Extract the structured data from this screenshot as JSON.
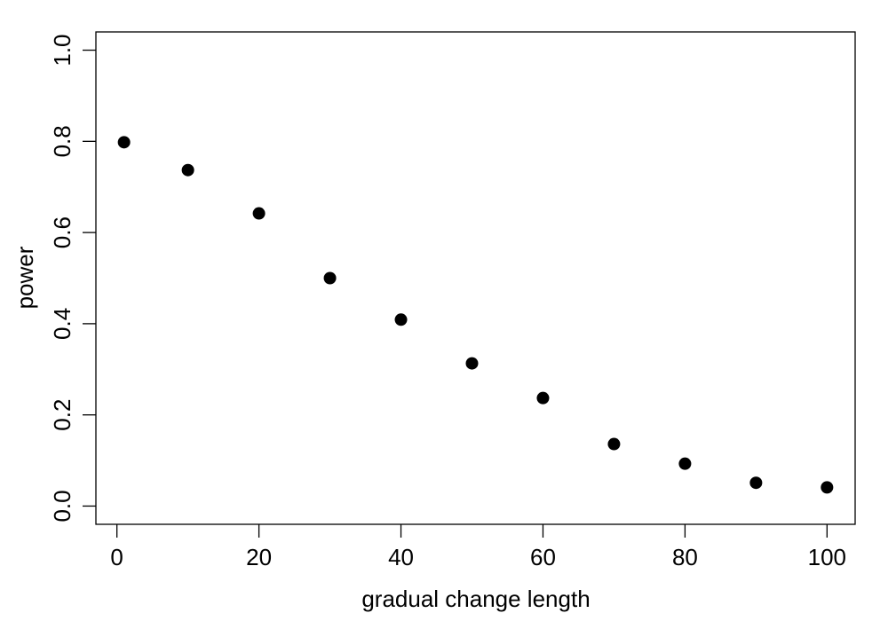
{
  "chart_data": {
    "type": "scatter",
    "x_label": "gradual change length",
    "y_label": "power",
    "x": [
      1,
      10,
      20,
      30,
      40,
      50,
      60,
      70,
      80,
      90,
      100
    ],
    "series": [
      {
        "color": "#000000",
        "values": [
          0.798,
          0.737,
          0.642,
          0.5,
          0.409,
          0.313,
          0.237,
          0.136,
          0.093,
          0.051,
          0.041
        ]
      }
    ],
    "xlim": [
      -2.96,
      103.96
    ],
    "xticks": [
      0,
      20,
      40,
      60,
      80,
      100
    ],
    "ylim": [
      -0.04,
      1.04
    ],
    "yticks": [
      {
        "value": 0,
        "label": "0.0"
      },
      0.2,
      0.4,
      0.6,
      0.8,
      {
        "value": 1,
        "label": "1.0"
      }
    ],
    "grid": false
  }
}
